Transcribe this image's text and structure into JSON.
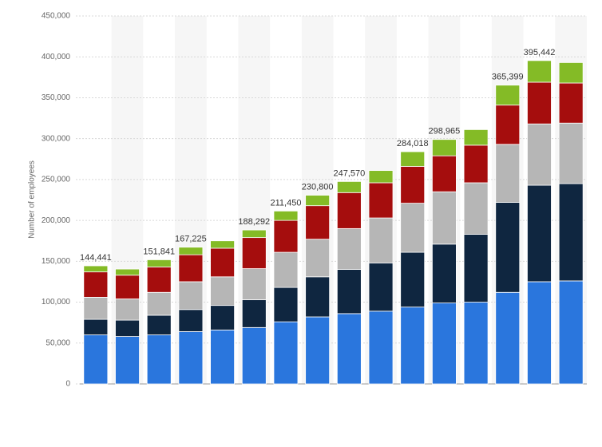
{
  "chart_data": {
    "type": "stacked_bar",
    "y_label": "Number of employees",
    "categories": [
      null,
      null,
      null,
      null,
      null,
      null,
      null,
      null,
      null,
      null,
      null,
      null,
      null,
      null,
      null,
      null
    ],
    "series": [
      {
        "color": "#2a76dd",
        "values": [
          60000,
          58000,
          60000,
          64000,
          66000,
          69000,
          76000,
          82000,
          86000,
          89000,
          94000,
          99000,
          100000,
          112000,
          125000,
          126000
        ]
      },
      {
        "color": "#0f2640",
        "values": [
          19000,
          20000,
          24000,
          27000,
          30000,
          34000,
          42000,
          49000,
          54000,
          59000,
          67000,
          72000,
          83000,
          110000,
          118000,
          119000
        ]
      },
      {
        "color": "#b6b6b6",
        "values": [
          27000,
          26000,
          28000,
          34000,
          35000,
          38000,
          43000,
          46000,
          50000,
          55000,
          60000,
          64000,
          63000,
          71000,
          75000,
          74000
        ]
      },
      {
        "color": "#a50d0d",
        "values": [
          31000,
          29000,
          31000,
          33000,
          35000,
          38000,
          39000,
          41000,
          44000,
          43000,
          45000,
          44000,
          46000,
          48000,
          51000,
          49000
        ]
      },
      {
        "color": "#84bb26",
        "values": [
          7441,
          7500,
          8841,
          9225,
          9000,
          9292,
          11450,
          12800,
          13570,
          15000,
          18018,
          19965,
          19000,
          24399,
          26442,
          25000
        ]
      }
    ],
    "total_labels": [
      "144,441",
      null,
      "151,841",
      "167,225",
      null,
      "188,292",
      "211,450",
      "230,800",
      "247,570",
      null,
      "284,018",
      "298,965",
      null,
      "365,399",
      "395,442",
      null
    ],
    "ylim": [
      0,
      450000
    ],
    "yticks": [
      0,
      {
        "value": 50000,
        "label": "50,000"
      },
      {
        "value": 100000,
        "label": "100,000"
      },
      {
        "value": 150000,
        "label": "150,000"
      },
      {
        "value": 200000,
        "label": "200,000"
      },
      {
        "value": 250000,
        "label": "250,000"
      },
      {
        "value": 300000,
        "label": "300,000"
      },
      {
        "value": 350000,
        "label": "350,000"
      },
      {
        "value": 400000,
        "label": "400,000"
      },
      {
        "value": 450000,
        "label": "450,000"
      }
    ],
    "grid": true
  }
}
